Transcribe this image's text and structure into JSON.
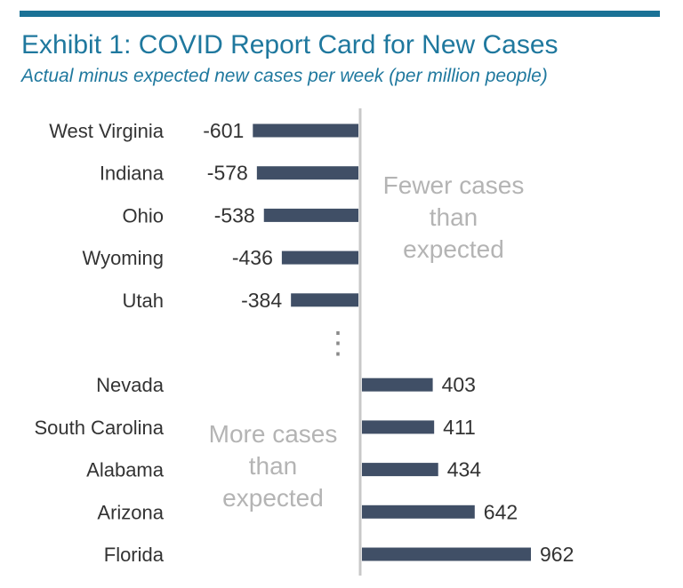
{
  "header": {
    "title": "Exhibit 1: COVID Report Card for New Cases",
    "subtitle": "Actual minus expected new cases per week (per million people)"
  },
  "chart_data": {
    "type": "bar",
    "orientation": "horizontal",
    "title": "Exhibit 1: COVID Report Card for New Cases",
    "subtitle": "Actual minus expected new cases per week (per million people)",
    "categories": [
      "West Virginia",
      "Indiana",
      "Ohio",
      "Wyoming",
      "Utah",
      "Nevada",
      "South Carolina",
      "Alabama",
      "Arizona",
      "Florida"
    ],
    "values": [
      -601,
      -578,
      -538,
      -436,
      -384,
      403,
      411,
      434,
      642,
      962
    ],
    "break_after_index": 4,
    "break_symbol": "⋮",
    "annotations": {
      "fewer_label": "Fewer cases than expected",
      "more_label": "More cases than expected"
    },
    "colors": {
      "bar": "#404f66",
      "axis": "#c8c8c8",
      "annotation": "#b4b4b4",
      "text": "#333333",
      "title": "#1f789e",
      "rule": "#1a7296"
    }
  }
}
